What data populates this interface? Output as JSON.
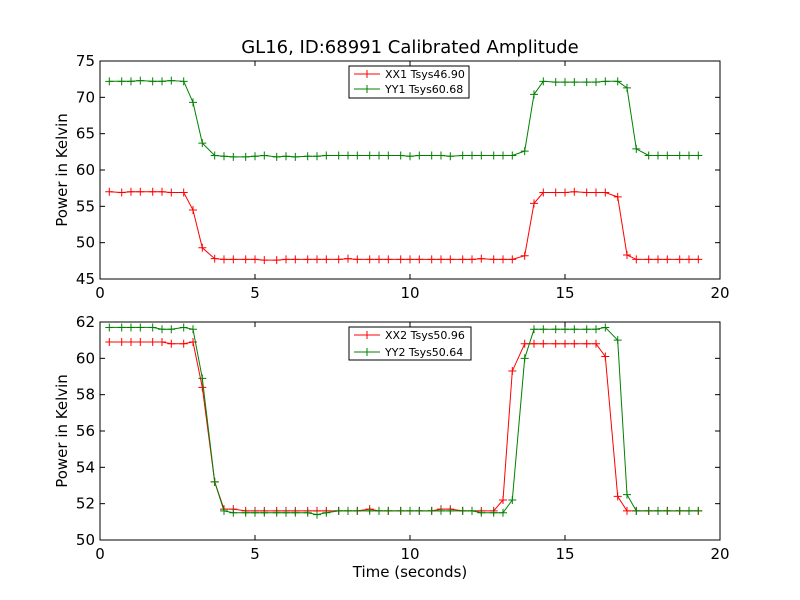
{
  "title": "GL16, ID:68991 Calibrated Amplitude",
  "colors": {
    "red": "#ff0000",
    "green": "#008000"
  },
  "chart_data": [
    {
      "type": "line",
      "ylabel": "Power in Kelvin",
      "xlabel": "",
      "xlim": [
        0,
        20
      ],
      "ylim": [
        45,
        75
      ],
      "xticks": [
        0,
        5,
        10,
        15,
        20
      ],
      "yticks": [
        45,
        50,
        55,
        60,
        65,
        70,
        75
      ],
      "grid": false,
      "legend_position": "top-center",
      "x": [
        0.3,
        0.7,
        1.0,
        1.3,
        1.7,
        2.0,
        2.3,
        2.7,
        3.0,
        3.3,
        3.7,
        4.0,
        4.3,
        4.7,
        5.0,
        5.3,
        5.7,
        6.0,
        6.3,
        6.7,
        7.0,
        7.3,
        7.7,
        8.0,
        8.3,
        8.7,
        9.0,
        9.3,
        9.7,
        10.0,
        10.3,
        10.7,
        11.0,
        11.3,
        11.7,
        12.0,
        12.3,
        12.7,
        13.0,
        13.3,
        13.7,
        14.0,
        14.3,
        14.7,
        15.0,
        15.3,
        15.7,
        16.0,
        16.3,
        16.7,
        17.0,
        17.3,
        17.7,
        18.0,
        18.3,
        18.7,
        19.0,
        19.3
      ],
      "series": [
        {
          "name": "XX1 Tsys46.90",
          "color": "#ff0000",
          "values": [
            57.0,
            56.9,
            57.0,
            57.0,
            57.0,
            57.0,
            56.9,
            56.9,
            54.5,
            49.3,
            47.8,
            47.7,
            47.7,
            47.7,
            47.7,
            47.6,
            47.6,
            47.7,
            47.7,
            47.7,
            47.7,
            47.7,
            47.7,
            47.8,
            47.7,
            47.7,
            47.7,
            47.7,
            47.7,
            47.7,
            47.7,
            47.7,
            47.7,
            47.7,
            47.7,
            47.7,
            47.8,
            47.7,
            47.7,
            47.7,
            48.2,
            55.4,
            56.9,
            56.9,
            56.9,
            57.0,
            56.9,
            56.9,
            56.9,
            56.3,
            48.3,
            47.7,
            47.7,
            47.7,
            47.7,
            47.7,
            47.7,
            47.7
          ]
        },
        {
          "name": "YY1 Tsys60.68",
          "color": "#008000",
          "values": [
            72.2,
            72.2,
            72.2,
            72.3,
            72.2,
            72.2,
            72.3,
            72.2,
            69.3,
            63.7,
            62.0,
            61.9,
            61.8,
            61.8,
            61.9,
            62.0,
            61.8,
            61.9,
            61.8,
            61.9,
            61.9,
            62.0,
            62.0,
            62.0,
            62.0,
            62.0,
            62.0,
            62.0,
            62.0,
            61.9,
            62.0,
            62.0,
            62.0,
            61.9,
            62.0,
            62.0,
            62.0,
            62.0,
            62.0,
            62.0,
            62.6,
            70.4,
            72.2,
            72.1,
            72.1,
            72.1,
            72.1,
            72.1,
            72.2,
            72.2,
            71.3,
            62.9,
            62.0,
            62.0,
            62.0,
            62.0,
            62.0,
            62.0
          ]
        }
      ]
    },
    {
      "type": "line",
      "ylabel": "Power in Kelvin",
      "xlabel": "Time (seconds)",
      "xlim": [
        0,
        20
      ],
      "ylim": [
        50,
        62
      ],
      "xticks": [
        0,
        5,
        10,
        15,
        20
      ],
      "yticks": [
        50,
        52,
        54,
        56,
        58,
        60,
        62
      ],
      "grid": false,
      "legend_position": "top-center",
      "x": [
        0.3,
        0.7,
        1.0,
        1.3,
        1.7,
        2.0,
        2.3,
        2.7,
        3.0,
        3.3,
        3.7,
        4.0,
        4.3,
        4.7,
        5.0,
        5.3,
        5.7,
        6.0,
        6.3,
        6.7,
        7.0,
        7.3,
        7.7,
        8.0,
        8.3,
        8.7,
        9.0,
        9.3,
        9.7,
        10.0,
        10.3,
        10.7,
        11.0,
        11.3,
        11.7,
        12.0,
        12.3,
        12.7,
        13.0,
        13.3,
        13.7,
        14.0,
        14.3,
        14.7,
        15.0,
        15.3,
        15.7,
        16.0,
        16.3,
        16.7,
        17.0,
        17.3,
        17.7,
        18.0,
        18.3,
        18.7,
        19.0,
        19.3
      ],
      "series": [
        {
          "name": "XX2 Tsys50.96",
          "color": "#ff0000",
          "values": [
            60.9,
            60.9,
            60.9,
            60.9,
            60.9,
            60.9,
            60.8,
            60.8,
            60.9,
            58.4,
            53.2,
            51.7,
            51.7,
            51.6,
            51.6,
            51.6,
            51.6,
            51.6,
            51.6,
            51.6,
            51.6,
            51.6,
            51.6,
            51.6,
            51.6,
            51.7,
            51.6,
            51.6,
            51.6,
            51.6,
            51.6,
            51.6,
            51.7,
            51.7,
            51.6,
            51.6,
            51.6,
            51.6,
            52.2,
            59.3,
            60.8,
            60.8,
            60.8,
            60.8,
            60.8,
            60.8,
            60.8,
            60.8,
            60.1,
            52.4,
            51.6,
            51.6,
            51.6,
            51.6,
            51.6,
            51.6,
            51.6,
            51.6
          ]
        },
        {
          "name": "YY2 Tsys50.64",
          "color": "#008000",
          "values": [
            61.7,
            61.7,
            61.7,
            61.7,
            61.7,
            61.6,
            61.6,
            61.7,
            61.6,
            58.9,
            53.2,
            51.6,
            51.5,
            51.5,
            51.5,
            51.5,
            51.5,
            51.5,
            51.5,
            51.5,
            51.4,
            51.5,
            51.6,
            51.6,
            51.6,
            51.6,
            51.6,
            51.6,
            51.6,
            51.6,
            51.6,
            51.6,
            51.6,
            51.6,
            51.6,
            51.6,
            51.5,
            51.5,
            51.5,
            52.2,
            60.0,
            61.6,
            61.6,
            61.6,
            61.6,
            61.6,
            61.6,
            61.6,
            61.7,
            61.0,
            52.5,
            51.6,
            51.6,
            51.6,
            51.6,
            51.6,
            51.6,
            51.6
          ]
        }
      ]
    }
  ]
}
